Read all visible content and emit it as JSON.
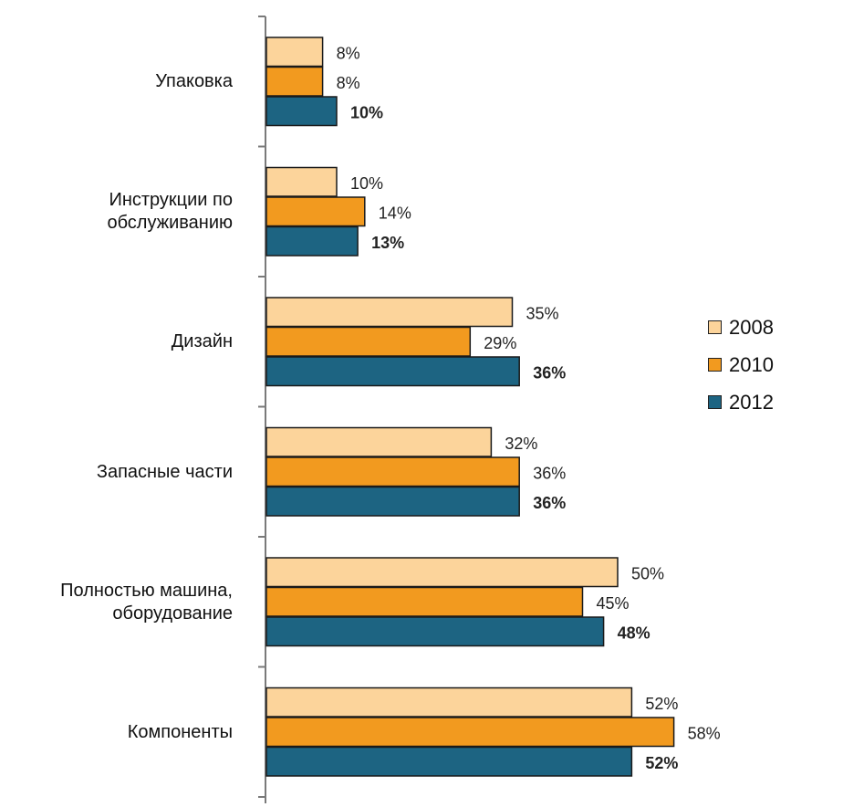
{
  "chart_data": {
    "type": "bar",
    "orientation": "horizontal",
    "categories": [
      "Упаковка",
      "Инструкции по\nобслуживанию",
      "Дизайн",
      "Запасные части",
      "Полностью машина,\nоборудование",
      "Компоненты"
    ],
    "series": [
      {
        "name": "2008",
        "color": "#fcd49b",
        "values": [
          8,
          10,
          35,
          32,
          50,
          52
        ],
        "labels": [
          "8%",
          "10%",
          "35%",
          "32%",
          "50%",
          "52%"
        ],
        "bold_labels": false
      },
      {
        "name": "2010",
        "color": "#f29a1f",
        "values": [
          8,
          14,
          29,
          36,
          45,
          58
        ],
        "labels": [
          "8%",
          "14%",
          "29%",
          "36%",
          "45%",
          "58%"
        ],
        "bold_labels": false
      },
      {
        "name": "2012",
        "color": "#1d6482",
        "values": [
          10,
          13,
          36,
          36,
          48,
          52
        ],
        "labels": [
          "10%",
          "13%",
          "36%",
          "36%",
          "48%",
          "52%"
        ],
        "bold_labels": true
      }
    ],
    "xlim": [
      0,
      100
    ],
    "grid": false,
    "legend_position": "right"
  }
}
